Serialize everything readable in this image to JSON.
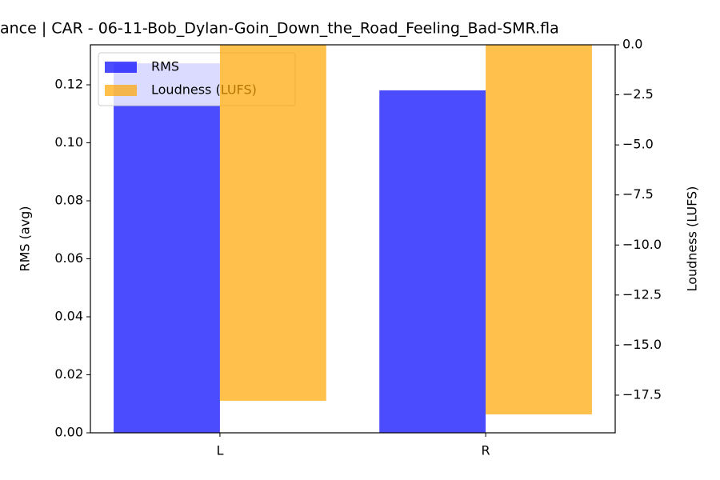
{
  "chart_data": {
    "type": "bar",
    "title": "ance | CAR - 06-11-Bob_Dylan-Goin_Down_the_Road_Feeling_Bad-SMR.fla",
    "categories": [
      "L",
      "R"
    ],
    "xlim": [
      -0.4875,
      1.4875
    ],
    "ylabel": "RMS (avg)",
    "y2label": "Loudness (LUFS)",
    "ylim": [
      0,
      0.1338
    ],
    "yticks": [
      {
        "value": 0,
        "label": "0.00"
      },
      {
        "value": 0.02,
        "label": "0.02"
      },
      {
        "value": 0.04,
        "label": "0.04"
      },
      {
        "value": 0.06,
        "label": "0.06"
      },
      {
        "value": 0.08,
        "label": "0.08"
      },
      {
        "value": 0.1,
        "label": "0.10"
      },
      {
        "value": 0.12,
        "label": "0.12"
      }
    ],
    "y2lim": [
      -19.38,
      0
    ],
    "y2ticks": [
      {
        "value": 0,
        "label": "0.0"
      },
      {
        "value": -2.5,
        "label": "−2.5"
      },
      {
        "value": -5,
        "label": "−5.0"
      },
      {
        "value": -7.5,
        "label": "−7.5"
      },
      {
        "value": -10,
        "label": "−10.0"
      },
      {
        "value": -12.5,
        "label": "−12.5"
      },
      {
        "value": -15,
        "label": "−15.0"
      },
      {
        "value": -17.5,
        "label": "−17.5"
      }
    ],
    "ylabel_color": "#0000ff",
    "y2label_color": "#ffa500",
    "legend": "upper left",
    "alpha": 0.7,
    "series": [
      {
        "name": "RMS",
        "color": "#0000ff",
        "values": [
          0.1274,
          0.1181
        ]
      },
      {
        "name": "Loudness (LUFS)",
        "color": "#ffa500",
        "axis": "y2",
        "values": [
          -17.78,
          -18.46
        ]
      }
    ]
  }
}
